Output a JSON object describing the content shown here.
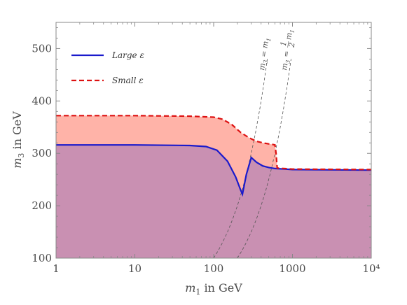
{
  "chart_data": {
    "type": "area",
    "xlabel": "m1 in GeV",
    "xlabel_var": "m",
    "xlabel_sub": "1",
    "xlabel_unit": " in GeV",
    "ylabel": "m3 in GeV",
    "ylabel_var": "m",
    "ylabel_sub": "3",
    "ylabel_unit": " in GeV",
    "x_scale": "log",
    "xlim": [
      1,
      10000
    ],
    "ylim": [
      100,
      550
    ],
    "x_ticks": [
      {
        "value": 1,
        "label": "1"
      },
      {
        "value": 10,
        "label": "10"
      },
      {
        "value": 100,
        "label": "100"
      },
      {
        "value": 1000,
        "label": "1000"
      },
      {
        "value": 10000,
        "label": "10⁴"
      }
    ],
    "y_ticks": [
      {
        "value": 100,
        "label": "100"
      },
      {
        "value": 200,
        "label": "200"
      },
      {
        "value": 300,
        "label": "300"
      },
      {
        "value": 400,
        "label": "400"
      },
      {
        "value": 500,
        "label": "500"
      }
    ],
    "grid": false,
    "legend_position": "top-left",
    "series": [
      {
        "name": "Small ε",
        "color": "#dd1111",
        "fill": "#ffb3a8",
        "dash": "dashed",
        "x": [
          1,
          10,
          50,
          100,
          130,
          170,
          220,
          280,
          350,
          420,
          500,
          560,
          600,
          620,
          640,
          1000,
          10000
        ],
        "y": [
          372,
          372,
          371,
          369,
          365,
          355,
          340,
          330,
          323,
          320,
          318,
          317,
          316,
          300,
          272,
          270,
          269
        ]
      },
      {
        "name": "Large ε",
        "color": "#1a1acc",
        "fill": "#c990b2",
        "dash": "solid",
        "x": [
          1,
          10,
          50,
          80,
          110,
          150,
          190,
          220,
          232,
          260,
          300,
          350,
          420,
          500,
          600,
          800,
          1000,
          10000
        ],
        "y": [
          316,
          316,
          315,
          313,
          306,
          285,
          255,
          230,
          222,
          260,
          292,
          283,
          276,
          273,
          271,
          270,
          269,
          268
        ]
      }
    ],
    "reference_curves": [
      {
        "label": "m3 = m1",
        "label_var": "m",
        "label_sub3": "3",
        "label_eq": " = ",
        "label_sub1": "1",
        "x": [
          100,
          115,
          130,
          150,
          175,
          200,
          230,
          262,
          300,
          340,
          385,
          430,
          480
        ],
        "y": [
          100,
          115,
          130,
          150,
          175,
          200,
          230,
          262,
          300,
          340,
          385,
          430,
          480
        ]
      },
      {
        "label": "m3 = m1 / 2",
        "label_lhs": "m",
        "label_sub3": "3",
        "label_eq": " = ",
        "label_num": "1",
        "label_den": "2",
        "label_sub1": "1",
        "x": [
          200,
          230,
          260,
          300,
          350,
          400,
          460,
          524,
          600,
          680,
          770,
          860,
          960
        ],
        "y": [
          100,
          115,
          130,
          150,
          175,
          200,
          230,
          262,
          300,
          340,
          385,
          430,
          480
        ]
      }
    ]
  }
}
